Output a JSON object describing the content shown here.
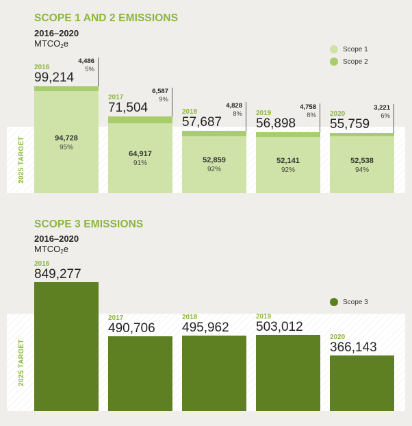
{
  "chart_data": [
    {
      "type": "bar",
      "title": "SCOPE 1 AND 2 EMISSIONS",
      "subtitle": "2016–2020",
      "unit_prefix": "MTCO",
      "unit_sub": "2",
      "unit_suffix": "e",
      "target_label": "2025 TARGET",
      "categories": [
        "2016",
        "2017",
        "2018",
        "2019",
        "2020"
      ],
      "totals": [
        "99,214",
        "71,504",
        "57,687",
        "56,898",
        "55,759"
      ],
      "total_values": [
        99214,
        71504,
        57687,
        56898,
        55759
      ],
      "series": [
        {
          "name": "Scope 1",
          "color": "#cfe3a8",
          "values": [
            94728,
            64917,
            52859,
            52141,
            52538
          ],
          "value_labels": [
            "94,728",
            "64,917",
            "52,859",
            "52,141",
            "52,538"
          ],
          "pct_labels": [
            "95%",
            "91%",
            "92%",
            "92%",
            "94%"
          ]
        },
        {
          "name": "Scope 2",
          "color": "#a9cd6a",
          "values": [
            4486,
            6587,
            4828,
            4758,
            3221
          ],
          "value_labels": [
            "4,486",
            "6,587",
            "4,828",
            "4,758",
            "3,221"
          ],
          "pct_labels": [
            "5%",
            "9%",
            "8%",
            "8%",
            "6%"
          ]
        }
      ],
      "ylim": [
        0,
        99214
      ],
      "target_approx": 52500,
      "legend_position": "top-right"
    },
    {
      "type": "bar",
      "title": "SCOPE 3 EMISSIONS",
      "subtitle": "2016–2020",
      "unit_prefix": "MTCO",
      "unit_sub": "2",
      "unit_suffix": "e",
      "target_label": "2025 TARGET",
      "categories": [
        "2016",
        "2017",
        "2018",
        "2019",
        "2020"
      ],
      "totals": [
        "849,277",
        "490,706",
        "495,962",
        "503,012",
        "366,143"
      ],
      "series": [
        {
          "name": "Scope 3",
          "color": "#5e7f22",
          "values": [
            849277,
            490706,
            495962,
            503012,
            366143
          ]
        }
      ],
      "ylim": [
        0,
        849277
      ],
      "target_approx": 625000,
      "legend_position": "right"
    }
  ]
}
